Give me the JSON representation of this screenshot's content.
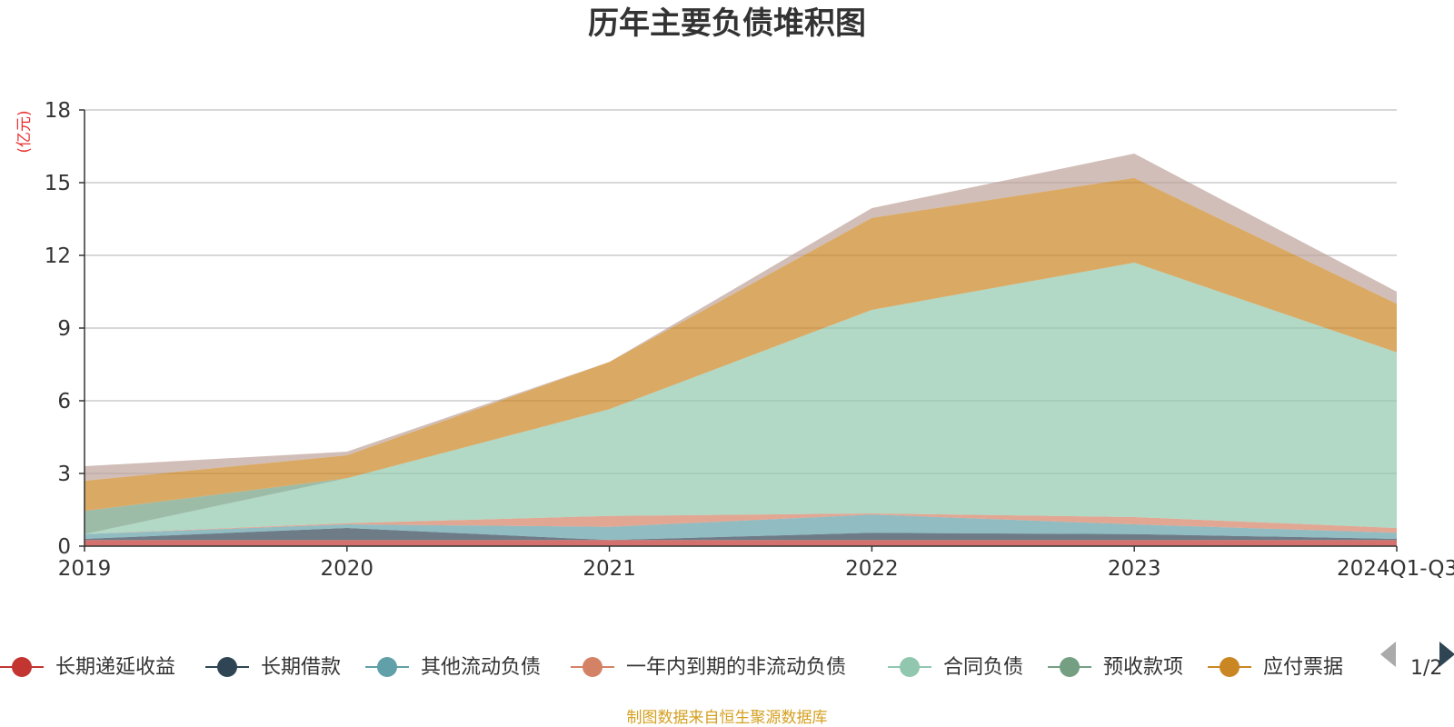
{
  "chart_data": {
    "type": "area",
    "title": "历年主要负债堆积图",
    "ylabel": "(亿元)",
    "xlabel": "",
    "categories": [
      "2019",
      "2020",
      "2021",
      "2022",
      "2023",
      "2024Q1-Q3"
    ],
    "ylim": [
      0,
      18
    ],
    "yticks": [
      0,
      3,
      6,
      9,
      12,
      15,
      18
    ],
    "stacked": true,
    "grid": true,
    "legend_position": "bottom",
    "series": [
      {
        "name": "长期递延收益",
        "color": "#c23531",
        "values": [
          0.25,
          0.25,
          0.25,
          0.25,
          0.25,
          0.25
        ]
      },
      {
        "name": "长期借款",
        "color": "#2f4554",
        "values": [
          0.05,
          0.5,
          0.0,
          0.3,
          0.25,
          0.05
        ]
      },
      {
        "name": "其他流动负债",
        "color": "#61a0a8",
        "values": [
          0.2,
          0.15,
          0.55,
          0.75,
          0.4,
          0.25
        ]
      },
      {
        "name": "一年内到期的非流动负债",
        "color": "#d48265",
        "values": [
          0.0,
          0.05,
          0.45,
          0.05,
          0.3,
          0.2
        ]
      },
      {
        "name": "合同负债",
        "color": "#91c7ae",
        "values": [
          0.0,
          1.85,
          4.4,
          8.4,
          10.5,
          7.25
        ]
      },
      {
        "name": "预收款项",
        "color": "#749f83",
        "values": [
          0.95,
          0.0,
          0.0,
          0.0,
          0.0,
          0.0
        ]
      },
      {
        "name": "应付票据",
        "color": "#ca8622",
        "values": [
          1.25,
          0.95,
          1.95,
          3.8,
          3.5,
          2.0
        ]
      },
      {
        "name": "",
        "color": "#bda29a",
        "values": [
          0.6,
          0.15,
          0.0,
          0.4,
          1.0,
          0.5
        ]
      }
    ]
  },
  "legend": {
    "page_text": "1/2"
  },
  "footer": {
    "source": "制图数据来自恒生聚源数据库"
  }
}
